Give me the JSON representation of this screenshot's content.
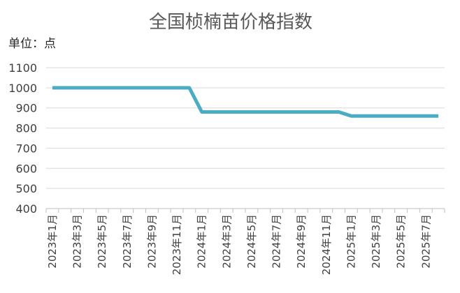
{
  "chart_data": {
    "type": "line",
    "title": "全国桢楠苗价格指数",
    "unit_label": "单位：点",
    "ylim": [
      400,
      1100
    ],
    "y_ticks": [
      400,
      500,
      600,
      700,
      800,
      900,
      1000,
      1100
    ],
    "grid": true,
    "legend": "none",
    "x_tick_labels": [
      "2023年1月",
      "2023年3月",
      "2023年5月",
      "2023年7月",
      "2023年9月",
      "2023年11月",
      "2024年1月",
      "2024年3月",
      "2024年5月",
      "2024年7月",
      "2024年9月",
      "2024年11月",
      "2025年1月",
      "2025年3月",
      "2025年5月",
      "2025年7月"
    ],
    "categories": [
      "2023年1月",
      "2023年2月",
      "2023年3月",
      "2023年4月",
      "2023年5月",
      "2023年6月",
      "2023年7月",
      "2023年8月",
      "2023年9月",
      "2023年10月",
      "2023年11月",
      "2023年12月",
      "2024年1月",
      "2024年2月",
      "2024年3月",
      "2024年4月",
      "2024年5月",
      "2024年6月",
      "2024年7月",
      "2024年8月",
      "2024年9月",
      "2024年10月",
      "2024年11月",
      "2024年12月",
      "2025年1月",
      "2025年2月",
      "2025年3月",
      "2025年4月",
      "2025年5月",
      "2025年6月",
      "2025年7月",
      "2025年8月"
    ],
    "series": [
      {
        "values": [
          1000,
          1000,
          1000,
          1000,
          1000,
          1000,
          1000,
          1000,
          1000,
          1000,
          1000,
          1000,
          880,
          880,
          880,
          880,
          880,
          880,
          880,
          880,
          880,
          880,
          880,
          880,
          860,
          860,
          860,
          860,
          860,
          860,
          860,
          860
        ],
        "color": "#4bacc6"
      }
    ]
  }
}
